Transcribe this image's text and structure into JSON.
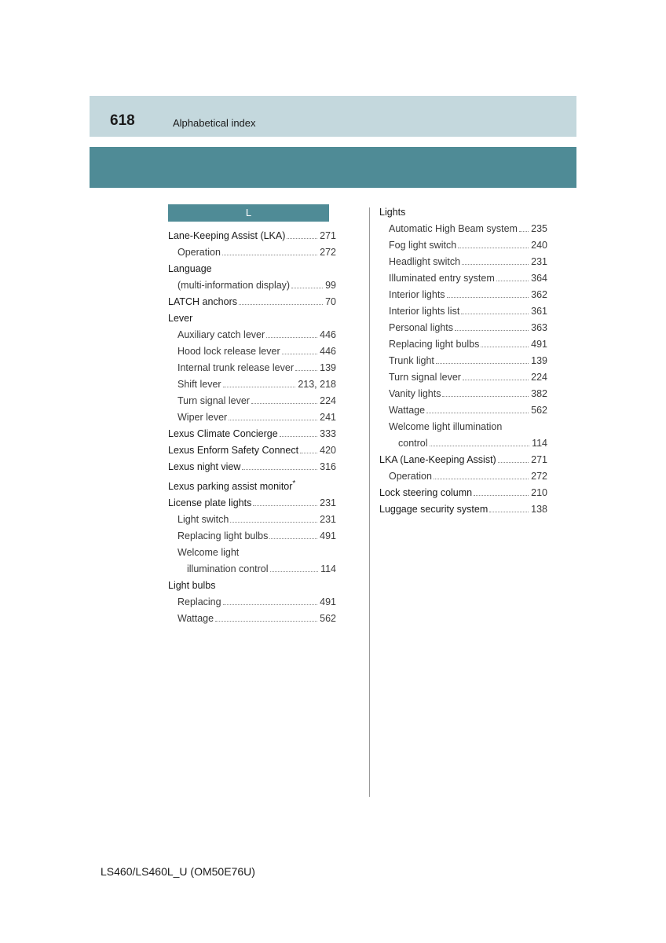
{
  "page_number": "618",
  "page_title": "Alphabetical index",
  "letter_header": "L",
  "footer": "LS460/LS460L_U (OM50E76U)",
  "colors": {
    "header_band": "#c4d8dd",
    "teal_band": "#4f8b96",
    "text": "#3a3a3a",
    "text_bold": "#1a1a1a"
  },
  "left_col": [
    {
      "label": "Lane-Keeping Assist (LKA)",
      "page": "271",
      "indent": 0
    },
    {
      "label": "Operation",
      "page": "272",
      "indent": 1
    },
    {
      "label": "Language",
      "page": "",
      "indent": 0
    },
    {
      "label": "(multi-information display)",
      "page": "99",
      "indent": 1
    },
    {
      "label": "LATCH anchors",
      "page": "70",
      "indent": 0
    },
    {
      "label": "Lever",
      "page": "",
      "indent": 0
    },
    {
      "label": "Auxiliary catch lever",
      "page": "446",
      "indent": 1
    },
    {
      "label": "Hood lock release lever",
      "page": "446",
      "indent": 1
    },
    {
      "label": "Internal trunk release lever",
      "page": "139",
      "indent": 1
    },
    {
      "label": "Shift lever",
      "page": "213, 218",
      "indent": 1
    },
    {
      "label": "Turn signal lever",
      "page": "224",
      "indent": 1
    },
    {
      "label": "Wiper lever",
      "page": "241",
      "indent": 1
    },
    {
      "label": "Lexus Climate Concierge",
      "page": "333",
      "indent": 0
    },
    {
      "label": "Lexus Enform Safety Connect",
      "page": "420",
      "indent": 0
    },
    {
      "label": "Lexus night view",
      "page": "316",
      "indent": 0
    },
    {
      "label": "Lexus parking assist monitor",
      "page": "",
      "indent": 0,
      "asterisk": true
    },
    {
      "label": "License plate lights",
      "page": "231",
      "indent": 0
    },
    {
      "label": "Light switch",
      "page": "231",
      "indent": 1
    },
    {
      "label": "Replacing light bulbs",
      "page": "491",
      "indent": 1
    },
    {
      "label": "Welcome light",
      "page": "",
      "indent": 1
    },
    {
      "label": "illumination control",
      "page": "114",
      "indent": 2
    },
    {
      "label": "Light bulbs",
      "page": "",
      "indent": 0
    },
    {
      "label": "Replacing",
      "page": "491",
      "indent": 1
    },
    {
      "label": "Wattage",
      "page": "562",
      "indent": 1
    }
  ],
  "right_col": [
    {
      "label": "Lights",
      "page": "",
      "indent": 0
    },
    {
      "label": "Automatic High Beam system",
      "page": "235",
      "indent": 1
    },
    {
      "label": "Fog light switch",
      "page": "240",
      "indent": 1
    },
    {
      "label": "Headlight switch",
      "page": "231",
      "indent": 1
    },
    {
      "label": "Illuminated entry system",
      "page": "364",
      "indent": 1
    },
    {
      "label": "Interior lights",
      "page": "362",
      "indent": 1
    },
    {
      "label": "Interior lights list",
      "page": "361",
      "indent": 1
    },
    {
      "label": "Personal lights",
      "page": "363",
      "indent": 1
    },
    {
      "label": "Replacing light bulbs",
      "page": "491",
      "indent": 1
    },
    {
      "label": "Trunk light",
      "page": "139",
      "indent": 1
    },
    {
      "label": "Turn signal lever",
      "page": "224",
      "indent": 1
    },
    {
      "label": "Vanity lights",
      "page": "382",
      "indent": 1
    },
    {
      "label": "Wattage",
      "page": "562",
      "indent": 1
    },
    {
      "label": "Welcome light illumination",
      "page": "",
      "indent": 1
    },
    {
      "label": "control",
      "page": "114",
      "indent": 2
    },
    {
      "label": "LKA (Lane-Keeping Assist)",
      "page": "271",
      "indent": 0
    },
    {
      "label": "Operation",
      "page": "272",
      "indent": 1
    },
    {
      "label": "Lock steering column",
      "page": "210",
      "indent": 0
    },
    {
      "label": "Luggage security system",
      "page": "138",
      "indent": 0
    }
  ]
}
